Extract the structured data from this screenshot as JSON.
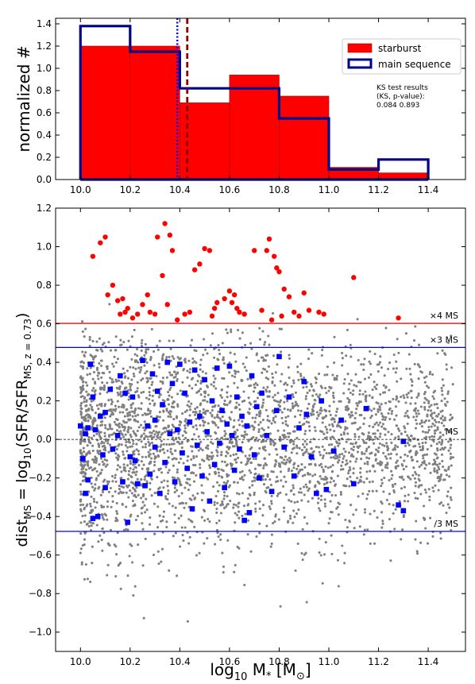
{
  "chart_data": [
    {
      "type": "bar",
      "panel": "histogram",
      "ylabel": "normalized #",
      "xlim": [
        9.9,
        11.55
      ],
      "ylim": [
        0,
        1.45
      ],
      "xticks": [
        "10.0",
        "10.2",
        "10.4",
        "10.6",
        "10.8",
        "11.0",
        "11.2",
        "11.4"
      ],
      "yticks": [
        "0.0",
        "0.2",
        "0.4",
        "0.6",
        "0.8",
        "1.0",
        "1.2",
        "1.4"
      ],
      "series": [
        {
          "name": "starburst",
          "style": "filled",
          "color": "#ff0000",
          "bins": [
            [
              10.0,
              10.2,
              1.2
            ],
            [
              10.2,
              10.4,
              1.2
            ],
            [
              10.4,
              10.6,
              0.69
            ],
            [
              10.6,
              10.8,
              0.94
            ],
            [
              10.8,
              11.0,
              0.75
            ],
            [
              11.0,
              11.2,
              0.11
            ],
            [
              11.2,
              11.4,
              0.06
            ]
          ]
        },
        {
          "name": "main sequence",
          "style": "step",
          "color": "#00008b",
          "bins": [
            [
              10.0,
              10.2,
              1.38
            ],
            [
              10.2,
              10.4,
              1.15
            ],
            [
              10.4,
              10.6,
              0.82
            ],
            [
              10.6,
              10.8,
              0.82
            ],
            [
              10.8,
              11.0,
              0.55
            ],
            [
              11.0,
              11.2,
              0.09
            ],
            [
              11.2,
              11.4,
              0.18
            ]
          ]
        }
      ],
      "vlines": [
        {
          "x": 10.39,
          "color": "#0000ff",
          "style": "dotted"
        },
        {
          "x": 10.43,
          "color": "#8b0000",
          "style": "dashed"
        }
      ],
      "legend_position": "top-right",
      "annotation": [
        "KS test results",
        "(KS, p-value):",
        "0.084 0.893"
      ]
    },
    {
      "type": "scatter",
      "panel": "distance",
      "xlabel": "log10 M* [M⊙]",
      "ylabel": "distMS = log10(SFR/SFRMS, z=0.73)",
      "xlim": [
        9.9,
        11.55
      ],
      "ylim": [
        -1.1,
        1.2
      ],
      "xticks": [
        "10.0",
        "10.2",
        "10.4",
        "10.6",
        "10.8",
        "11.0",
        "11.2",
        "11.4"
      ],
      "yticks": [
        "−1.0",
        "−0.8",
        "−0.6",
        "−0.4",
        "−0.2",
        "0.0",
        "0.2",
        "0.4",
        "0.6",
        "0.8",
        "1.0",
        "1.2"
      ],
      "hlines": [
        {
          "y": 0.602,
          "label": "×4 MS",
          "color": "#ff0000",
          "style": "solid"
        },
        {
          "y": 0.477,
          "label": "×3 MS",
          "color": "#0000ff",
          "style": "solid"
        },
        {
          "y": 0.0,
          "label": "MS",
          "color": "#000000",
          "style": "dashed"
        },
        {
          "y": -0.477,
          "label": "/3 MS",
          "color": "#0000ff",
          "style": "solid"
        }
      ],
      "field_cloud": {
        "color": "#808080",
        "count": 3200,
        "x_range": [
          10.0,
          11.5
        ],
        "y_range": [
          -0.95,
          1.06
        ]
      },
      "starburst_points": {
        "color": "#ff0000",
        "points": [
          [
            10.05,
            0.95
          ],
          [
            10.08,
            1.02
          ],
          [
            10.1,
            1.05
          ],
          [
            10.11,
            0.75
          ],
          [
            10.13,
            0.8
          ],
          [
            10.15,
            0.72
          ],
          [
            10.16,
            0.65
          ],
          [
            10.17,
            0.73
          ],
          [
            10.18,
            0.66
          ],
          [
            10.19,
            0.68
          ],
          [
            10.21,
            0.63
          ],
          [
            10.23,
            0.65
          ],
          [
            10.25,
            0.7
          ],
          [
            10.27,
            0.75
          ],
          [
            10.28,
            0.66
          ],
          [
            10.3,
            0.65
          ],
          [
            10.31,
            1.05
          ],
          [
            10.33,
            0.85
          ],
          [
            10.34,
            1.12
          ],
          [
            10.35,
            0.7
          ],
          [
            10.36,
            1.06
          ],
          [
            10.37,
            0.98
          ],
          [
            10.39,
            0.62
          ],
          [
            10.42,
            0.65
          ],
          [
            10.44,
            0.66
          ],
          [
            10.46,
            0.88
          ],
          [
            10.48,
            0.91
          ],
          [
            10.5,
            0.99
          ],
          [
            10.52,
            0.98
          ],
          [
            10.53,
            0.64
          ],
          [
            10.54,
            0.68
          ],
          [
            10.55,
            0.71
          ],
          [
            10.58,
            0.73
          ],
          [
            10.6,
            0.77
          ],
          [
            10.61,
            0.71
          ],
          [
            10.62,
            0.75
          ],
          [
            10.63,
            0.68
          ],
          [
            10.64,
            0.66
          ],
          [
            10.66,
            0.65
          ],
          [
            10.7,
            0.98
          ],
          [
            10.73,
            0.67
          ],
          [
            10.75,
            0.98
          ],
          [
            10.76,
            1.04
          ],
          [
            10.77,
            0.62
          ],
          [
            10.78,
            0.95
          ],
          [
            10.79,
            0.89
          ],
          [
            10.8,
            0.87
          ],
          [
            10.81,
            0.64
          ],
          [
            10.82,
            0.78
          ],
          [
            10.84,
            0.74
          ],
          [
            10.86,
            0.66
          ],
          [
            10.88,
            0.64
          ],
          [
            10.9,
            0.76
          ],
          [
            10.92,
            0.67
          ],
          [
            10.96,
            0.66
          ],
          [
            10.98,
            0.65
          ],
          [
            11.1,
            0.84
          ],
          [
            11.28,
            0.63
          ]
        ]
      },
      "main_sequence_points": {
        "color": "#0000ff",
        "points": [
          [
            10.0,
            0.07
          ],
          [
            10.01,
            -0.1
          ],
          [
            10.02,
            0.03
          ],
          [
            10.02,
            -0.28
          ],
          [
            10.03,
            -0.21
          ],
          [
            10.03,
            0.06
          ],
          [
            10.04,
            0.39
          ],
          [
            10.05,
            -0.41
          ],
          [
            10.05,
            0.22
          ],
          [
            10.06,
            0.05
          ],
          [
            10.07,
            -0.4
          ],
          [
            10.08,
            0.12
          ],
          [
            10.09,
            -0.08
          ],
          [
            10.1,
            0.14
          ],
          [
            10.1,
            -0.25
          ],
          [
            10.12,
            0.26
          ],
          [
            10.13,
            -0.05
          ],
          [
            10.15,
            0.02
          ],
          [
            10.16,
            0.33
          ],
          [
            10.17,
            -0.22
          ],
          [
            10.18,
            0.24
          ],
          [
            10.19,
            -0.43
          ],
          [
            10.2,
            -0.09
          ],
          [
            10.21,
            0.22
          ],
          [
            10.22,
            -0.11
          ],
          [
            10.23,
            -0.23
          ],
          [
            10.25,
            0.41
          ],
          [
            10.26,
            -0.24
          ],
          [
            10.27,
            0.07
          ],
          [
            10.28,
            -0.18
          ],
          [
            10.29,
            0.34
          ],
          [
            10.3,
            0.1
          ],
          [
            10.3,
            -0.04
          ],
          [
            10.31,
            0.25
          ],
          [
            10.32,
            -0.28
          ],
          [
            10.33,
            0.18
          ],
          [
            10.34,
            -0.12
          ],
          [
            10.35,
            0.4
          ],
          [
            10.36,
            0.03
          ],
          [
            10.37,
            0.29
          ],
          [
            10.38,
            -0.22
          ],
          [
            10.39,
            0.05
          ],
          [
            10.4,
            0.39
          ],
          [
            10.41,
            -0.07
          ],
          [
            10.42,
            0.24
          ],
          [
            10.43,
            -0.15
          ],
          [
            10.44,
            0.09
          ],
          [
            10.45,
            -0.36
          ],
          [
            10.46,
            0.36
          ],
          [
            10.47,
            -0.03
          ],
          [
            10.48,
            0.12
          ],
          [
            10.49,
            -0.19
          ],
          [
            10.5,
            0.31
          ],
          [
            10.51,
            0.04
          ],
          [
            10.52,
            -0.32
          ],
          [
            10.53,
            0.2
          ],
          [
            10.54,
            -0.13
          ],
          [
            10.55,
            0.37
          ],
          [
            10.56,
            -0.02
          ],
          [
            10.57,
            0.15
          ],
          [
            10.58,
            -0.25
          ],
          [
            10.59,
            0.08
          ],
          [
            10.6,
            0.38
          ],
          [
            10.61,
            0.02
          ],
          [
            10.62,
            -0.16
          ],
          [
            10.63,
            0.22
          ],
          [
            10.64,
            -0.05
          ],
          [
            10.65,
            0.12
          ],
          [
            10.66,
            -0.42
          ],
          [
            10.67,
            0.07
          ],
          [
            10.68,
            -0.38
          ],
          [
            10.69,
            0.33
          ],
          [
            10.7,
            -0.08
          ],
          [
            10.71,
            0.17
          ],
          [
            10.72,
            -0.2
          ],
          [
            10.73,
            0.24
          ],
          [
            10.75,
            0.02
          ],
          [
            10.77,
            -0.27
          ],
          [
            10.79,
            0.15
          ],
          [
            10.8,
            0.43
          ],
          [
            10.82,
            -0.04
          ],
          [
            10.84,
            0.22
          ],
          [
            10.86,
            -0.19
          ],
          [
            10.88,
            0.06
          ],
          [
            10.9,
            0.3
          ],
          [
            10.91,
            0.13
          ],
          [
            10.93,
            -0.09
          ],
          [
            10.95,
            -0.28
          ],
          [
            10.97,
            0.2
          ],
          [
            10.99,
            -0.26
          ],
          [
            11.02,
            -0.06
          ],
          [
            11.05,
            0.1
          ],
          [
            11.1,
            -0.23
          ],
          [
            11.15,
            0.16
          ],
          [
            11.28,
            -0.34
          ],
          [
            11.3,
            -0.37
          ],
          [
            11.3,
            -0.01
          ]
        ]
      }
    }
  ]
}
